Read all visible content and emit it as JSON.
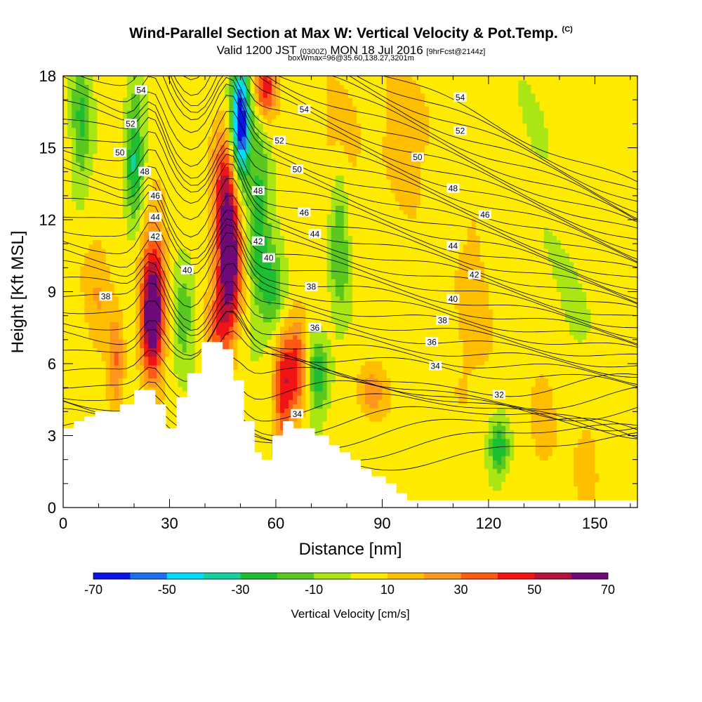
{
  "chart_data": {
    "type": "heatmap",
    "title": "Wind-Parallel Section at Max W: Vertical Velocity & Pot.Temp.",
    "title_tag": "(C)",
    "subtitle_main": "Valid 1200 JST",
    "subtitle_z": "(0300Z)",
    "subtitle_date": "MON 18 Jul 2016",
    "subtitle_fcst": "[9hrFcst@2144z]",
    "subtitle2": "boxWmax=96@35.60,138.27,3201m",
    "xlabel": "Distance [nm]",
    "ylabel": "Height [Kft MSL]",
    "xlim": [
      0,
      162
    ],
    "ylim": [
      0,
      18
    ],
    "x_ticks": [
      0,
      30,
      60,
      90,
      120,
      150
    ],
    "y_ticks": [
      0,
      3,
      6,
      9,
      12,
      15,
      18
    ],
    "colorbar": {
      "title": "Vertical Velocity [cm/s]",
      "tick_labels": [
        "-70",
        "-50",
        "-30",
        "-10",
        "10",
        "30",
        "50",
        "70"
      ],
      "levels": [
        -70,
        -60,
        -50,
        -40,
        -30,
        -20,
        -10,
        0,
        10,
        20,
        30,
        40,
        50,
        60,
        70
      ],
      "colors": [
        "#0a14e6",
        "#1f6ef0",
        "#00dcff",
        "#14d2a0",
        "#1ebe32",
        "#5ac81e",
        "#aae614",
        "#ffeb00",
        "#ffbe00",
        "#ff961e",
        "#ff5a14",
        "#f01414",
        "#b4143c",
        "#6e0a78"
      ]
    },
    "background_velocity": 4,
    "velocity_features": [
      {
        "x": 25,
        "y": 7.8,
        "sx": 2.2,
        "sy": 1.6,
        "w": 70
      },
      {
        "x": 26,
        "y": 10.5,
        "sx": 2.5,
        "sy": 2.0,
        "w": 25
      },
      {
        "x": 47,
        "y": 10.5,
        "sx": 2.2,
        "sy": 2.0,
        "w": 75
      },
      {
        "x": 45,
        "y": 13.5,
        "sx": 2.5,
        "sy": 1.6,
        "w": 35
      },
      {
        "x": 44,
        "y": 7.5,
        "sx": 2.5,
        "sy": 1.5,
        "w": 30
      },
      {
        "x": 50,
        "y": 16.0,
        "sx": 1.8,
        "sy": 1.8,
        "w": -75
      },
      {
        "x": 55,
        "y": 12.0,
        "sx": 2.2,
        "sy": 2.5,
        "w": -30
      },
      {
        "x": 59,
        "y": 9.0,
        "sx": 2.5,
        "sy": 1.5,
        "w": -25
      },
      {
        "x": 62,
        "y": 5.0,
        "sx": 2.0,
        "sy": 1.8,
        "w": 40
      },
      {
        "x": 66,
        "y": 6.0,
        "sx": 2.0,
        "sy": 1.5,
        "w": 35
      },
      {
        "x": 57,
        "y": 17.5,
        "sx": 2.0,
        "sy": 0.8,
        "w": 45
      },
      {
        "x": 20,
        "y": 14.5,
        "sx": 1.8,
        "sy": 2.0,
        "w": -35
      },
      {
        "x": 5,
        "y": 16.0,
        "sx": 2.0,
        "sy": 2.0,
        "w": -25
      },
      {
        "x": 34,
        "y": 8.0,
        "sx": 2.0,
        "sy": 1.5,
        "w": -20
      },
      {
        "x": 78,
        "y": 11.5,
        "sx": 2.0,
        "sy": 2.5,
        "w": -25
      },
      {
        "x": 72,
        "y": 5.5,
        "sx": 2.0,
        "sy": 1.2,
        "w": -30
      },
      {
        "x": 123,
        "y": 2.5,
        "sx": 2.0,
        "sy": 0.8,
        "w": -35
      },
      {
        "x": 87,
        "y": 4.8,
        "sx": 3.0,
        "sy": 0.8,
        "w": 22
      },
      {
        "x": 78,
        "y": 15.0,
        "sx": 4.0,
        "sy": 2.0,
        "w": 14
      },
      {
        "x": 97,
        "y": 15.5,
        "sx": 5.0,
        "sy": 2.0,
        "w": 14
      },
      {
        "x": 115,
        "y": 8.0,
        "sx": 4.0,
        "sy": 3.0,
        "w": 12
      },
      {
        "x": 135,
        "y": 3.5,
        "sx": 3.0,
        "sy": 2.0,
        "w": 12
      },
      {
        "x": 148,
        "y": 2.0,
        "sx": 2.5,
        "sy": 1.5,
        "w": 14
      },
      {
        "x": 15,
        "y": 6.0,
        "sx": 1.5,
        "sy": 1.5,
        "w": 25
      },
      {
        "x": 10,
        "y": 9.0,
        "sx": 3.0,
        "sy": 2.0,
        "w": 14
      },
      {
        "x": 130,
        "y": 14.0,
        "sx": 6.0,
        "sy": 3.0,
        "w": -4
      },
      {
        "x": 145,
        "y": 8.0,
        "sx": 6.0,
        "sy": 3.0,
        "w": -4
      }
    ],
    "terrain": {
      "x": [
        0,
        3,
        3,
        6,
        6,
        9,
        9,
        16,
        16,
        20,
        20,
        26,
        26,
        29,
        29,
        32,
        32,
        35,
        35,
        39,
        39,
        45,
        45,
        48,
        48,
        51,
        51,
        54,
        54,
        56,
        56,
        59,
        59,
        62,
        62,
        65,
        65,
        71,
        71,
        75,
        75,
        78,
        78,
        81,
        81,
        84,
        84,
        87,
        87,
        91,
        91,
        94,
        94,
        97,
        97,
        100,
        100,
        162
      ],
      "y": [
        3.3,
        3.3,
        3.6,
        3.6,
        3.8,
        3.8,
        4.0,
        4.0,
        4.3,
        4.3,
        4.9,
        4.9,
        4.3,
        4.3,
        3.3,
        3.3,
        4.6,
        4.6,
        5.6,
        5.6,
        6.9,
        6.9,
        6.6,
        6.6,
        5.3,
        5.3,
        3.6,
        3.6,
        2.3,
        2.3,
        2.0,
        2.0,
        3.0,
        3.0,
        3.6,
        3.6,
        3.3,
        3.3,
        3.0,
        3.0,
        2.6,
        2.6,
        2.3,
        2.3,
        2.0,
        2.0,
        1.6,
        1.6,
        1.3,
        1.3,
        1.0,
        1.0,
        0.6,
        0.6,
        0.3,
        0.3,
        0.3,
        0.3
      ]
    },
    "contour_labels": [
      {
        "text": "54",
        "x": 22,
        "y": 17.4
      },
      {
        "text": "52",
        "x": 19,
        "y": 16.0
      },
      {
        "text": "50",
        "x": 16,
        "y": 14.8
      },
      {
        "text": "48",
        "x": 23,
        "y": 14.0
      },
      {
        "text": "46",
        "x": 26,
        "y": 13.0
      },
      {
        "text": "44",
        "x": 26,
        "y": 12.1
      },
      {
        "text": "42",
        "x": 26,
        "y": 11.3
      },
      {
        "text": "40",
        "x": 35,
        "y": 9.9
      },
      {
        "text": "38",
        "x": 12,
        "y": 8.8
      },
      {
        "text": "54",
        "x": 68,
        "y": 16.6
      },
      {
        "text": "52",
        "x": 61,
        "y": 15.3
      },
      {
        "text": "50",
        "x": 66,
        "y": 14.1
      },
      {
        "text": "48",
        "x": 55,
        "y": 13.2
      },
      {
        "text": "46",
        "x": 68,
        "y": 12.3
      },
      {
        "text": "44",
        "x": 71,
        "y": 11.4
      },
      {
        "text": "42",
        "x": 55,
        "y": 11.1
      },
      {
        "text": "40",
        "x": 58,
        "y": 10.4
      },
      {
        "text": "38",
        "x": 70,
        "y": 9.2
      },
      {
        "text": "36",
        "x": 71,
        "y": 7.5
      },
      {
        "text": "34",
        "x": 66,
        "y": 3.9
      },
      {
        "text": "54",
        "x": 112,
        "y": 17.1
      },
      {
        "text": "52",
        "x": 112,
        "y": 15.7
      },
      {
        "text": "50",
        "x": 100,
        "y": 14.6
      },
      {
        "text": "48",
        "x": 110,
        "y": 13.3
      },
      {
        "text": "46",
        "x": 119,
        "y": 12.2
      },
      {
        "text": "44",
        "x": 110,
        "y": 10.9
      },
      {
        "text": "42",
        "x": 116,
        "y": 9.7
      },
      {
        "text": "40",
        "x": 110,
        "y": 8.7
      },
      {
        "text": "38",
        "x": 107,
        "y": 7.8
      },
      {
        "text": "36",
        "x": 104,
        "y": 6.9
      },
      {
        "text": "34",
        "x": 105,
        "y": 5.9
      },
      {
        "text": "32",
        "x": 123,
        "y": 4.7
      }
    ]
  }
}
